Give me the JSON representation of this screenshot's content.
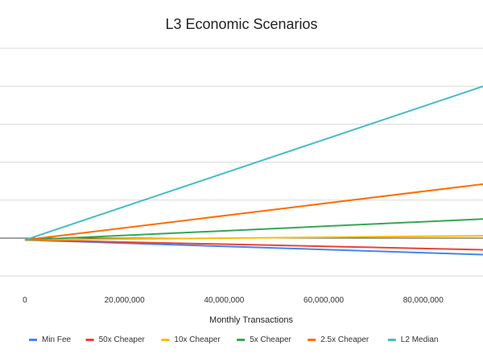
{
  "chart_data": {
    "type": "line",
    "title": "L3 Economic Scenarios",
    "xlabel": "Monthly Transactions",
    "ylabel": "",
    "x": [
      0,
      100000000
    ],
    "x_ticks": [
      0,
      20000000,
      40000000,
      60000000,
      80000000
    ],
    "x_tick_labels": [
      "0",
      "20,000,000",
      "40,000,000",
      "60,000,000",
      "80,000,000"
    ],
    "xlim": [
      -5000000,
      92000000
    ],
    "y_ticks": [
      -1,
      0,
      1,
      2,
      3,
      4,
      5
    ],
    "ylim": [
      -1.4,
      5
    ],
    "grid": true,
    "legend_position": "bottom",
    "series": [
      {
        "name": "Min Fee",
        "color": "#4285f4",
        "values": [
          -0.05,
          -0.47
        ]
      },
      {
        "name": "50x Cheaper",
        "color": "#ea4335",
        "values": [
          -0.05,
          -0.33
        ]
      },
      {
        "name": "10x Cheaper",
        "color": "#fbbc04",
        "values": [
          -0.05,
          0.07
        ]
      },
      {
        "name": "5x Cheaper",
        "color": "#34a853",
        "values": [
          -0.05,
          0.55
        ]
      },
      {
        "name": "2.5x Cheaper",
        "color": "#ff6d01",
        "values": [
          -0.05,
          1.55
        ]
      },
      {
        "name": "L2 Median",
        "color": "#46bdc6",
        "values": [
          -0.05,
          4.35
        ]
      }
    ]
  }
}
